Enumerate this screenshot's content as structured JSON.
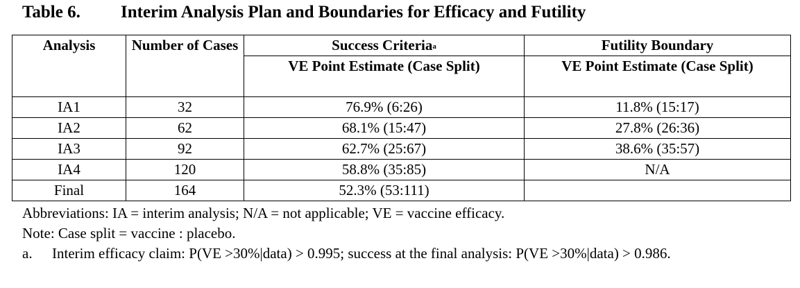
{
  "title": {
    "number": "Table 6.",
    "text": "Interim Analysis Plan and Boundaries for Efficacy and Futility"
  },
  "table": {
    "headers": {
      "analysis": "Analysis",
      "cases": "Number of Cases",
      "success_criteria": "Success Criteria",
      "success_footnote_mark": "a",
      "success_sub": "VE Point Estimate (Case Split)",
      "futility": "Futility Boundary",
      "futility_sub": "VE Point Estimate (Case Split)"
    },
    "rows": [
      {
        "analysis": "IA1",
        "cases": "32",
        "success": "76.9% (6:26)",
        "futility": "11.8% (15:17)"
      },
      {
        "analysis": "IA2",
        "cases": "62",
        "success": "68.1% (15:47)",
        "futility": "27.8% (26:36)"
      },
      {
        "analysis": "IA3",
        "cases": "92",
        "success": "62.7% (25:67)",
        "futility": "38.6% (35:57)"
      },
      {
        "analysis": "IA4",
        "cases": "120",
        "success": "58.8% (35:85)",
        "futility": "N/A"
      },
      {
        "analysis": "Final",
        "cases": "164",
        "success": "52.3% (53:111)",
        "futility": ""
      }
    ]
  },
  "notes": {
    "abbreviations": "Abbreviations: IA = interim analysis; N/A = not applicable; VE = vaccine efficacy.",
    "note": "Note: Case split = vaccine : placebo.",
    "footnote_mark": "a.",
    "footnote_text": "Interim efficacy claim: P(VE >30%|data) > 0.995; success at the final analysis: P(VE >30%|data) > 0.986."
  }
}
